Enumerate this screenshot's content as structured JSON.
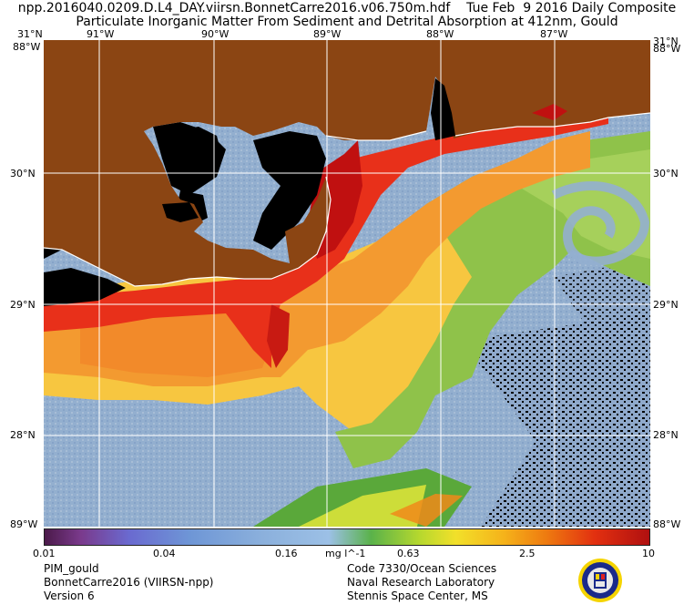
{
  "header": {
    "title_line1": "npp.2016040.0209.D.L4_DAY.viirsn.BonnetCarre2016.v06.750m.hdf    Tue Feb  9 2016 Daily Composite",
    "title_line2": "Particulate Inorganic Matter From Sediment and Detrital Absorption at 412nm, Gould"
  },
  "map": {
    "lon_labels": [
      "91°W",
      "90°W",
      "89°W",
      "88°W",
      "87°W"
    ],
    "lat_labels": [
      "30°N",
      "29°N",
      "28°N"
    ],
    "corner_top_lat": "31°N",
    "corner_bottom_lat": "88°W",
    "corner_mid": "88°W",
    "corner_bottom": "89°W",
    "land_color": "#8B4513",
    "no_data_color": "#000000",
    "grid_color": "#ffffff"
  },
  "colorbar": {
    "tick_labels": [
      "0.01",
      "0.04",
      "0.16",
      "0.63",
      "2.5",
      "10"
    ],
    "units": "mg l^-1",
    "scale": "log"
  },
  "footer": {
    "left": [
      "PIM_gould",
      "BonnetCarre2016 (VIIRSN-npp)",
      "Version 6"
    ],
    "right": [
      "Code 7330/Ocean Sciences",
      "Naval Research Laboratory",
      "Stennis Space Center, MS"
    ]
  }
}
